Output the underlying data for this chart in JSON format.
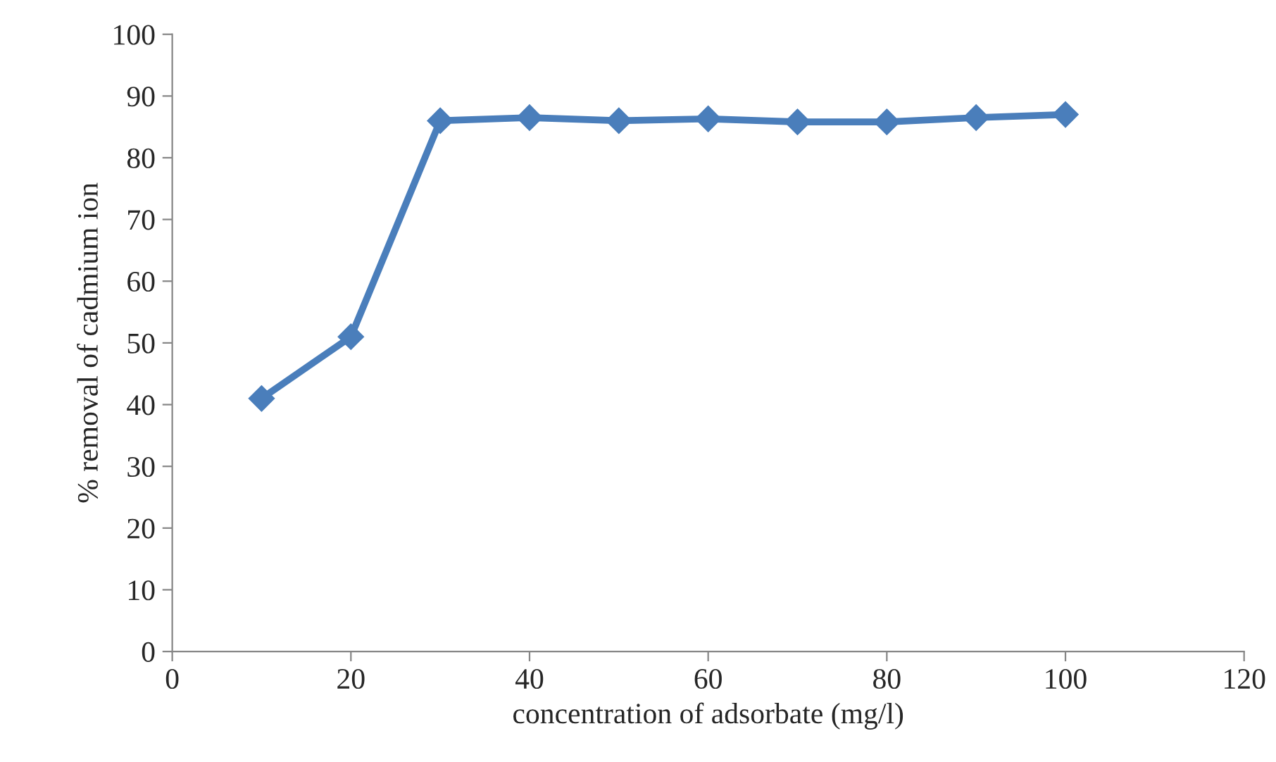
{
  "chart_data": {
    "type": "line",
    "xlabel": "concentration of adsorbate (mg/l)",
    "ylabel": "% removal of cadmium ion",
    "x": [
      10,
      20,
      30,
      40,
      50,
      60,
      70,
      80,
      90,
      100
    ],
    "series": [
      {
        "color": "#4a7ebb",
        "values": [
          41,
          51,
          86,
          86.5,
          86,
          86.3,
          85.8,
          85.8,
          86.5,
          87
        ]
      }
    ],
    "xlim": [
      0,
      120
    ],
    "xticks": [
      0,
      20,
      40,
      60,
      80,
      100,
      120
    ],
    "ylim": [
      0,
      100
    ],
    "yticks": [
      0,
      10,
      20,
      30,
      40,
      50,
      60,
      70,
      80,
      90,
      100
    ],
    "grid": false,
    "legend": false,
    "marker": "diamond",
    "line_style": "solid"
  }
}
